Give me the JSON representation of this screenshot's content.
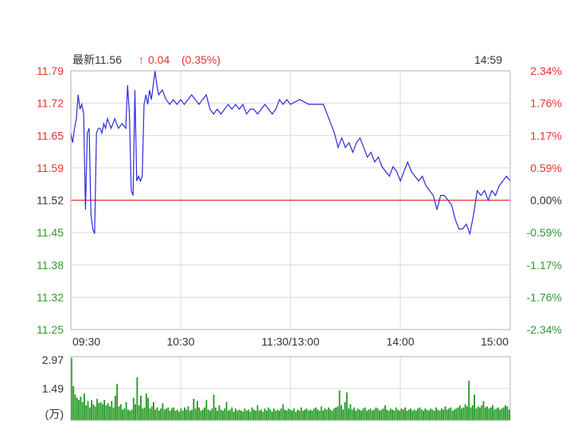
{
  "header": {
    "latest_label": "最新",
    "latest_price": "11.56",
    "change_arrow": "↑",
    "change": "0.04",
    "change_pct": "(0.35%)",
    "time": "14:59"
  },
  "colors": {
    "up": "#e8322d",
    "down": "#2e9a2e",
    "neutral": "#333333",
    "price_line": "#2b2bd9",
    "prev_close_line": "#e8322d",
    "volume": "#1f9a1f",
    "grid": "#d9d9d9"
  },
  "chart_data": [
    {
      "type": "line",
      "prev_close": 11.52,
      "ylim": [
        11.25,
        11.79
      ],
      "y_ticks": [
        "11.79",
        "11.72",
        "11.65",
        "11.59",
        "11.52",
        "11.45",
        "11.38",
        "11.32",
        "11.25"
      ],
      "y_ticks_right": [
        "2.34%",
        "1.76%",
        "1.17%",
        "0.59%",
        "0.00%",
        "-0.59%",
        "-1.17%",
        "-1.76%",
        "-2.34%"
      ],
      "x_ticks": [
        "09:30",
        "10:30",
        "11:30/13:00",
        "14:00",
        "15:00"
      ],
      "x_tick_minutes": [
        0,
        60,
        120,
        180,
        240
      ],
      "x_range": [
        0,
        240
      ],
      "series": [
        {
          "x": [
            0,
            1,
            2,
            3,
            4,
            5,
            6,
            7,
            8,
            9,
            10,
            11,
            12,
            13,
            14,
            15,
            16,
            17,
            18,
            19,
            20,
            22,
            24,
            26,
            28,
            30,
            31,
            32,
            33,
            34,
            35,
            36,
            37,
            38,
            39,
            40,
            41,
            42,
            43,
            44,
            45,
            46,
            47,
            48,
            50,
            52,
            54,
            56,
            58,
            60,
            62,
            64,
            66,
            68,
            70,
            72,
            74,
            76,
            78,
            80,
            82,
            84,
            86,
            88,
            90,
            92,
            94,
            96,
            98,
            100,
            102,
            104,
            106,
            108,
            110,
            112,
            114,
            116,
            118,
            120,
            125,
            130,
            135,
            138,
            140,
            142,
            144,
            146,
            148,
            150,
            152,
            154,
            156,
            158,
            160,
            162,
            164,
            166,
            168,
            170,
            172,
            174,
            176,
            178,
            180,
            182,
            184,
            186,
            188,
            190,
            192,
            194,
            196,
            198,
            200,
            202,
            204,
            206,
            208,
            210,
            212,
            214,
            216,
            218,
            220,
            222,
            224,
            226,
            228,
            230,
            232,
            234,
            236,
            238,
            240
          ],
          "y": [
            11.66,
            11.64,
            11.67,
            11.69,
            11.74,
            11.71,
            11.72,
            11.7,
            11.5,
            11.66,
            11.67,
            11.49,
            11.46,
            11.45,
            11.66,
            11.67,
            11.67,
            11.66,
            11.68,
            11.67,
            11.69,
            11.67,
            11.69,
            11.67,
            11.68,
            11.67,
            11.76,
            11.7,
            11.54,
            11.53,
            11.75,
            11.56,
            11.57,
            11.56,
            11.57,
            11.72,
            11.74,
            11.72,
            11.75,
            11.73,
            11.76,
            11.79,
            11.76,
            11.74,
            11.75,
            11.73,
            11.72,
            11.73,
            11.72,
            11.73,
            11.72,
            11.73,
            11.74,
            11.73,
            11.72,
            11.73,
            11.74,
            11.71,
            11.7,
            11.71,
            11.7,
            11.71,
            11.72,
            11.71,
            11.72,
            11.71,
            11.72,
            11.7,
            11.71,
            11.71,
            11.7,
            11.71,
            11.72,
            11.71,
            11.7,
            11.71,
            11.73,
            11.72,
            11.73,
            11.72,
            11.73,
            11.72,
            11.72,
            11.72,
            11.7,
            11.68,
            11.66,
            11.63,
            11.65,
            11.63,
            11.64,
            11.62,
            11.64,
            11.65,
            11.63,
            11.61,
            11.62,
            11.6,
            11.61,
            11.59,
            11.58,
            11.57,
            11.59,
            11.58,
            11.56,
            11.58,
            11.6,
            11.58,
            11.57,
            11.56,
            11.57,
            11.55,
            11.54,
            11.53,
            11.5,
            11.53,
            11.53,
            11.52,
            11.51,
            11.48,
            11.46,
            11.46,
            11.47,
            11.45,
            11.49,
            11.54,
            11.53,
            11.54,
            11.52,
            11.54,
            11.53,
            11.55,
            11.56,
            11.57,
            11.56
          ]
        }
      ]
    },
    {
      "type": "bar",
      "unit_label": "(万)",
      "y_ticks": [
        "2.97",
        "1.49"
      ],
      "ylim": [
        0,
        2.97
      ],
      "values": [
        2.9,
        1.6,
        1.2,
        1.05,
        0.95,
        1.1,
        0.85,
        1.25,
        0.7,
        0.9,
        0.6,
        0.95,
        0.75,
        0.65,
        1.0,
        0.8,
        0.85,
        0.75,
        0.95,
        0.7,
        0.8,
        0.65,
        0.9,
        0.6,
        1.15,
        1.7,
        0.65,
        0.75,
        0.5,
        0.55,
        0.85,
        0.5,
        0.45,
        0.5,
        1.05,
        0.75,
        2.0,
        0.7,
        1.15,
        0.55,
        0.6,
        1.25,
        1.05,
        0.55,
        0.65,
        0.85,
        0.5,
        0.6,
        0.45,
        0.55,
        0.8,
        0.5,
        0.55,
        0.6,
        0.45,
        0.55,
        0.6,
        0.45,
        0.5,
        0.4,
        0.55,
        0.45,
        0.6,
        0.5,
        0.65,
        0.45,
        0.5,
        1.0,
        0.55,
        0.9,
        0.6,
        0.45,
        0.5,
        0.6,
        0.95,
        0.5,
        0.45,
        0.55,
        1.2,
        0.6,
        0.45,
        0.7,
        0.5,
        0.45,
        0.55,
        0.85,
        0.45,
        0.5,
        0.6,
        0.4,
        0.55,
        0.45,
        0.5,
        0.45,
        0.4,
        0.55,
        0.45,
        0.5,
        0.4,
        0.6,
        0.5,
        0.45,
        0.7,
        0.45,
        0.5,
        0.4,
        0.55,
        0.45,
        0.6,
        0.5,
        0.4,
        0.55,
        0.45,
        0.5,
        0.45,
        0.55,
        0.75,
        0.5,
        0.45,
        0.55,
        0.5,
        0.45,
        0.55,
        0.4,
        0.5,
        0.45,
        0.6,
        0.45,
        0.5,
        0.55,
        0.45,
        0.5,
        0.45,
        0.55,
        0.6,
        0.5,
        0.45,
        0.65,
        0.45,
        0.55,
        0.5,
        0.6,
        0.5,
        0.45,
        0.55,
        0.6,
        0.65,
        1.4,
        0.7,
        0.5,
        0.85,
        1.3,
        0.55,
        0.75,
        0.5,
        0.6,
        0.45,
        0.55,
        0.5,
        0.45,
        0.55,
        0.6,
        0.45,
        0.5,
        0.55,
        0.45,
        0.5,
        0.6,
        0.55,
        0.45,
        0.5,
        0.55,
        0.7,
        0.5,
        0.45,
        0.55,
        0.5,
        0.45,
        0.6,
        0.5,
        0.45,
        0.55,
        0.5,
        0.6,
        0.45,
        0.5,
        0.55,
        0.45,
        0.5,
        0.45,
        0.55,
        0.6,
        0.5,
        0.45,
        0.55,
        0.5,
        0.45,
        0.55,
        0.5,
        0.45,
        0.6,
        0.5,
        0.45,
        0.55,
        0.5,
        0.65,
        0.5,
        0.55,
        0.6,
        0.45,
        0.5,
        0.55,
        0.6,
        0.7,
        0.55,
        0.6,
        0.75,
        0.65,
        1.85,
        0.6,
        0.7,
        1.2,
        0.55,
        0.65,
        0.6,
        0.7,
        0.9,
        0.6,
        0.65,
        0.55,
        0.6,
        0.7,
        0.5,
        0.55,
        0.6,
        0.5,
        0.55,
        0.6,
        0.7,
        0.65,
        0.5
      ]
    }
  ]
}
